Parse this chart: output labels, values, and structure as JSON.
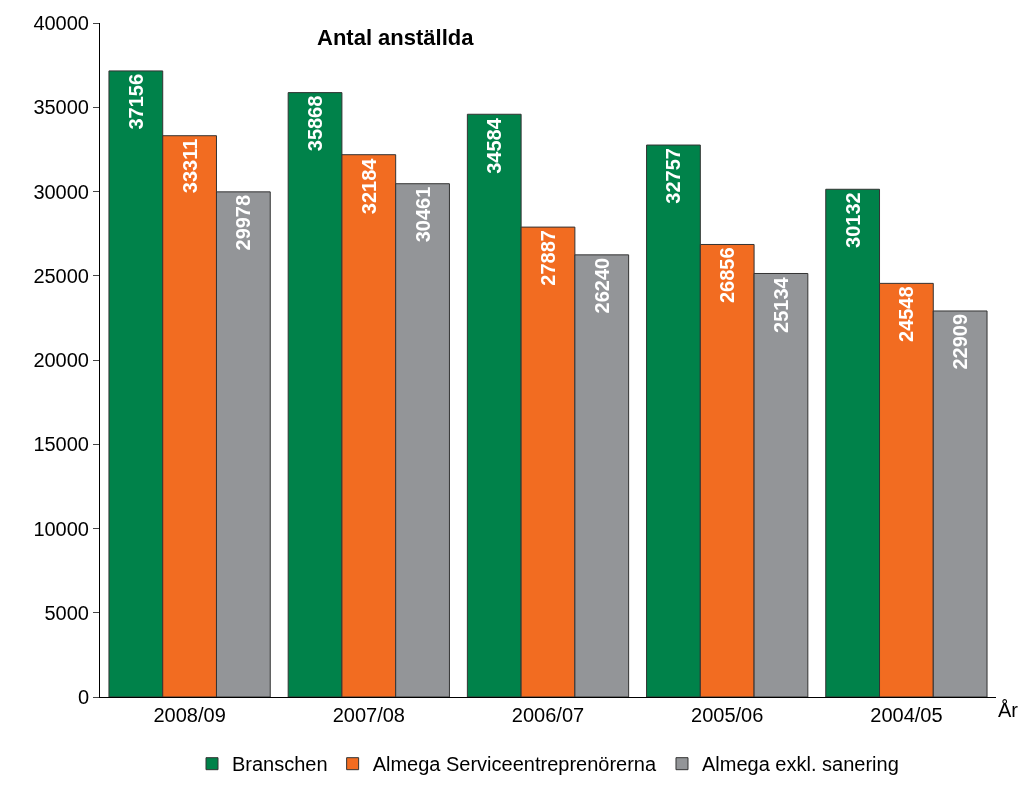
{
  "chart_data": {
    "type": "bar",
    "title": "Antal anställda",
    "xlabel": "År",
    "categories": [
      "2008/09",
      "2007/08",
      "2006/07",
      "2005/06",
      "2004/05"
    ],
    "series": [
      {
        "name": "Branschen",
        "color": "#00824a",
        "values": [
          37156,
          35868,
          34584,
          32757,
          30132
        ]
      },
      {
        "name": "Almega Serviceentreprenörerna",
        "color": "#f26c21",
        "values": [
          33311,
          32184,
          27887,
          26856,
          24548
        ]
      },
      {
        "name": "Almega exkl. sanering",
        "color": "#939598",
        "values": [
          29978,
          30461,
          26240,
          25134,
          22909
        ]
      }
    ],
    "ylim": [
      0,
      40000
    ],
    "yticks": [
      0,
      5000,
      10000,
      15000,
      20000,
      25000,
      30000,
      35000,
      40000
    ],
    "data_labels": true,
    "legend": "bottom"
  }
}
